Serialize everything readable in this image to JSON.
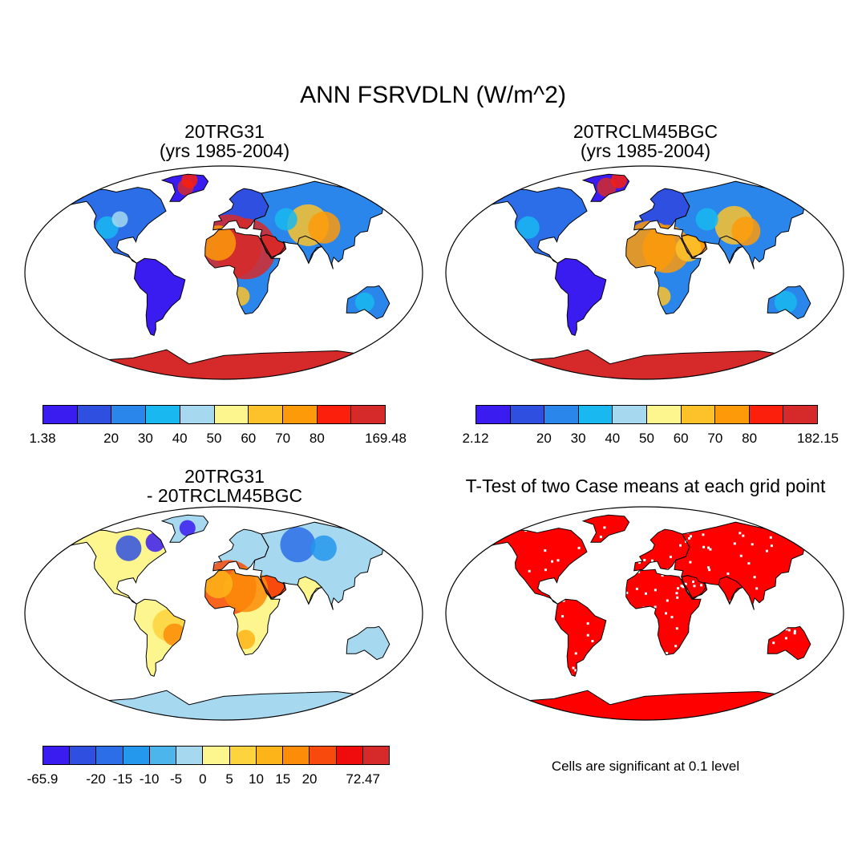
{
  "title": "ANN FSRVDLN (W/m^2)",
  "panels": [
    {
      "id": "case1",
      "title_lines": [
        "20TRG31",
        "(yrs 1985-2004)"
      ],
      "colorbar": {
        "colors": [
          "#3a1bf0",
          "#2f4fe0",
          "#2b86ec",
          "#19b8f0",
          "#a6d8f0",
          "#fdf58e",
          "#fdc22a",
          "#fd9a0a",
          "#fb1f0c",
          "#d62a2a"
        ],
        "labels": [
          "1.38",
          "",
          "20",
          "30",
          "40",
          "50",
          "60",
          "70",
          "80",
          "",
          "169.48"
        ]
      }
    },
    {
      "id": "case2",
      "title_lines": [
        "20TRCLM45BGC",
        "(yrs 1985-2004)"
      ],
      "colorbar": {
        "colors": [
          "#3a1bf0",
          "#2f4fe0",
          "#2b86ec",
          "#19b8f0",
          "#a6d8f0",
          "#fdf58e",
          "#fdc22a",
          "#fd9a0a",
          "#fb1f0c",
          "#d62a2a"
        ],
        "labels": [
          "2.12",
          "",
          "20",
          "30",
          "40",
          "50",
          "60",
          "70",
          "80",
          "",
          "182.15"
        ]
      }
    },
    {
      "id": "difference",
      "title_lines": [
        "20TRG31",
        "- 20TRCLM45BGC"
      ],
      "colorbar": {
        "colors": [
          "#3a1bf0",
          "#2f4fe0",
          "#2b6ee8",
          "#2398ec",
          "#4cb6ec",
          "#a6d8f0",
          "#fdf58e",
          "#fdd43e",
          "#fdb418",
          "#fd8c08",
          "#f84a0c",
          "#f00c0c",
          "#d62a2a"
        ],
        "labels": [
          "-65.9",
          "",
          "-20",
          "-15",
          "-10",
          "-5",
          "0",
          "5",
          "10",
          "15",
          "20",
          "",
          "72.47"
        ]
      }
    },
    {
      "id": "ttest",
      "title_lines": [
        "T-Test of two Case means at each grid point"
      ],
      "note": "Cells are significant at 0.1 level"
    }
  ],
  "legend_colors": {
    "significant": "#ff0000",
    "coastline": "#000000"
  }
}
